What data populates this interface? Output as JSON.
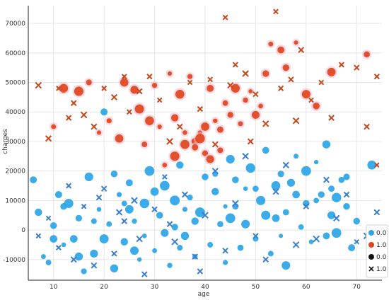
{
  "chart_data": {
    "type": "scatter",
    "title": "",
    "xlabel": "age",
    "ylabel": "charges",
    "xlim": [
      5,
      75
    ],
    "ylim": [
      -17000,
      76000
    ],
    "x_ticks": [
      10,
      20,
      30,
      40,
      50,
      60,
      70
    ],
    "y_ticks": [
      -10000,
      0,
      10000,
      20000,
      30000,
      40000,
      50000,
      60000,
      70000
    ],
    "grid": true,
    "legend_position": "bottom-right",
    "colors": {
      "blue": "#2aa4e8",
      "red": "#e0451b",
      "blue_x": "#3a7fcf",
      "red_x": "#c8471c",
      "pink_halo": "#f3b9d2",
      "black": "#111111"
    },
    "legend": [
      {
        "label": "0.0",
        "marker": "circle",
        "color": "#2aa4e8"
      },
      {
        "label": "1.0",
        "marker": "circle",
        "color": "#e0451b"
      },
      {
        "label": "0.0",
        "marker": "circle",
        "color": "#111111"
      },
      {
        "label": "1.0",
        "marker": "x",
        "color": "#111111"
      }
    ],
    "series": [
      {
        "name": "0.0",
        "marker": "circle",
        "color": "#2aa4e8",
        "points": [
          [
            6,
            17000
          ],
          [
            7,
            6000
          ],
          [
            8,
            -9000
          ],
          [
            9,
            -11000
          ],
          [
            10,
            1500
          ],
          [
            11,
            12000
          ],
          [
            12,
            -5000
          ],
          [
            13,
            9000
          ],
          [
            14,
            -3000
          ],
          [
            15,
            4000
          ],
          [
            16,
            -14000
          ],
          [
            17,
            18000
          ],
          [
            18,
            -8000
          ],
          [
            19,
            7000
          ],
          [
            20,
            40000
          ],
          [
            21,
            2000
          ],
          [
            22,
            -13000
          ],
          [
            23,
            12000
          ],
          [
            24,
            -4000
          ],
          [
            25,
            16000
          ],
          [
            26,
            3000
          ],
          [
            27,
            -10000
          ],
          [
            28,
            9000
          ],
          [
            29,
            20000
          ],
          [
            30,
            -7000
          ],
          [
            31,
            5000
          ],
          [
            32,
            15000
          ],
          [
            33,
            -12000
          ],
          [
            34,
            1000
          ],
          [
            35,
            22000
          ],
          [
            36,
            -2000
          ],
          [
            37,
            11000
          ],
          [
            38,
            -9000
          ],
          [
            39,
            6000
          ],
          [
            40,
            18000
          ],
          [
            41,
            -5000
          ],
          [
            42,
            13000
          ],
          [
            43,
            2000
          ],
          [
            44,
            -11000
          ],
          [
            45,
            24000
          ],
          [
            46,
            8000
          ],
          [
            47,
            -6000
          ],
          [
            48,
            14000
          ],
          [
            49,
            21000
          ],
          [
            50,
            -3000
          ],
          [
            51,
            10000
          ],
          [
            52,
            27000
          ],
          [
            53,
            -8000
          ],
          [
            54,
            4000
          ],
          [
            55,
            19000
          ],
          [
            56,
            -12000
          ],
          [
            57,
            16000
          ],
          [
            58,
            25000
          ],
          [
            59,
            1000
          ],
          [
            60,
            9000
          ],
          [
            61,
            -4000
          ],
          [
            62,
            23000
          ],
          [
            63,
            12000
          ],
          [
            64,
            29000
          ],
          [
            65,
            5000
          ],
          [
            66,
            -1000
          ],
          [
            67,
            17000
          ],
          [
            68,
            8000
          ],
          [
            69,
            -6000
          ],
          [
            70,
            3000
          ],
          [
            73,
            22000
          ],
          [
            74,
            -3000
          ],
          [
            12,
            8000
          ],
          [
            18,
            3000
          ],
          [
            24,
            9000
          ],
          [
            30,
            13000
          ],
          [
            36,
            7000
          ],
          [
            42,
            19000
          ],
          [
            48,
            2000
          ],
          [
            54,
            15000
          ],
          [
            60,
            20000
          ],
          [
            66,
            11000
          ],
          [
            20,
            -3000
          ],
          [
            26,
            -7000
          ],
          [
            32,
            -1000
          ],
          [
            38,
            3000
          ],
          [
            44,
            8000
          ],
          [
            50,
            14000
          ],
          [
            56,
            6000
          ],
          [
            62,
            10000
          ],
          [
            68,
            18000
          ],
          [
            15,
            -9000
          ],
          [
            25,
            7000
          ],
          [
            35,
            -6000
          ],
          [
            45,
            4000
          ],
          [
            55,
            -2000
          ],
          [
            65,
            14000
          ],
          [
            10,
            -3000
          ],
          [
            22,
            19000
          ],
          [
            28,
            -2000
          ],
          [
            34,
            10000
          ],
          [
            46,
            17000
          ],
          [
            52,
            5000
          ],
          [
            58,
            12000
          ],
          [
            64,
            -2000
          ]
        ]
      },
      {
        "name": "1.0",
        "marker": "circle",
        "color": "#e0451b",
        "points": [
          [
            10,
            35000
          ],
          [
            12,
            48000
          ],
          [
            15,
            47000
          ],
          [
            17,
            50000
          ],
          [
            19,
            33000
          ],
          [
            21,
            37000
          ],
          [
            23,
            31000
          ],
          [
            24,
            50000
          ],
          [
            26,
            47500
          ],
          [
            27,
            41000
          ],
          [
            28,
            29000
          ],
          [
            29,
            37000
          ],
          [
            30,
            49000
          ],
          [
            31,
            35000
          ],
          [
            32,
            22000
          ],
          [
            33,
            53000
          ],
          [
            34,
            38000
          ],
          [
            35,
            46000
          ],
          [
            36,
            29000
          ],
          [
            37,
            52000
          ],
          [
            38,
            30000
          ],
          [
            39,
            33000
          ],
          [
            40,
            26000
          ],
          [
            41,
            48000
          ],
          [
            42,
            37000
          ],
          [
            43,
            34000
          ],
          [
            44,
            43000
          ],
          [
            45,
            39000
          ],
          [
            46,
            48000
          ],
          [
            47,
            36000
          ],
          [
            48,
            44000
          ],
          [
            49,
            47000
          ],
          [
            50,
            39000
          ],
          [
            51,
            42000
          ],
          [
            52,
            53000
          ],
          [
            53,
            63000
          ],
          [
            55,
            61000
          ],
          [
            56,
            55000
          ],
          [
            58,
            63500
          ],
          [
            60,
            46000
          ],
          [
            62,
            42000
          ],
          [
            65,
            53500
          ],
          [
            72,
            59500
          ],
          [
            39,
            31000
          ],
          [
            40,
            35000
          ],
          [
            41,
            24000
          ],
          [
            43,
            27000
          ],
          [
            38,
            28000
          ],
          [
            36,
            33000
          ],
          [
            34,
            25000
          ]
        ]
      },
      {
        "name": "0.0",
        "marker": "x",
        "color": "#3a7fcf",
        "points": [
          [
            7,
            -2000
          ],
          [
            9,
            4000
          ],
          [
            11,
            -6000
          ],
          [
            13,
            15000
          ],
          [
            16,
            8000
          ],
          [
            18,
            -12000
          ],
          [
            20,
            14000
          ],
          [
            22,
            -8000
          ],
          [
            24,
            3000
          ],
          [
            26,
            10000
          ],
          [
            28,
            -15000
          ],
          [
            30,
            7000
          ],
          [
            32,
            18000
          ],
          [
            34,
            -4000
          ],
          [
            36,
            12000
          ],
          [
            38,
            -9000
          ],
          [
            40,
            5000
          ],
          [
            42,
            20000
          ],
          [
            44,
            -7000
          ],
          [
            46,
            9000
          ],
          [
            48,
            25000
          ],
          [
            50,
            -2000
          ],
          [
            52,
            -10000
          ],
          [
            54,
            13000
          ],
          [
            56,
            22000
          ],
          [
            58,
            -5000
          ],
          [
            60,
            8000
          ],
          [
            62,
            -3000
          ],
          [
            64,
            17000
          ],
          [
            66,
            4000
          ],
          [
            68,
            12000
          ],
          [
            70,
            -4000
          ],
          [
            72,
            -2000
          ],
          [
            74,
            6000
          ],
          [
            14,
            -10000
          ],
          [
            19,
            11000
          ],
          [
            23,
            6000
          ],
          [
            27,
            -3000
          ],
          [
            33,
            2000
          ],
          [
            39,
            -14000
          ]
        ]
      },
      {
        "name": "1.0",
        "marker": "x",
        "color": "#c8471c",
        "points": [
          [
            7,
            49000
          ],
          [
            9,
            31000
          ],
          [
            11,
            48000
          ],
          [
            13,
            38000
          ],
          [
            14,
            43000
          ],
          [
            16,
            39000
          ],
          [
            18,
            35000
          ],
          [
            20,
            48000
          ],
          [
            22,
            45000
          ],
          [
            24,
            52000
          ],
          [
            25,
            40000
          ],
          [
            27,
            47000
          ],
          [
            29,
            52000
          ],
          [
            31,
            44000
          ],
          [
            33,
            30000
          ],
          [
            35,
            35000
          ],
          [
            37,
            50000
          ],
          [
            39,
            41000
          ],
          [
            41,
            51000
          ],
          [
            42,
            29000
          ],
          [
            44,
            72000
          ],
          [
            45,
            49000
          ],
          [
            46,
            56000
          ],
          [
            48,
            53000
          ],
          [
            49,
            30000
          ],
          [
            50,
            46000
          ],
          [
            52,
            36000
          ],
          [
            54,
            74000
          ],
          [
            55,
            48000
          ],
          [
            57,
            51000
          ],
          [
            58,
            37000
          ],
          [
            59,
            61000
          ],
          [
            61,
            44000
          ],
          [
            63,
            50000
          ],
          [
            65,
            38000
          ],
          [
            67,
            56000
          ],
          [
            70,
            55000
          ],
          [
            72,
            35000
          ],
          [
            74,
            52000
          ],
          [
            74,
            22000
          ]
        ]
      }
    ]
  }
}
